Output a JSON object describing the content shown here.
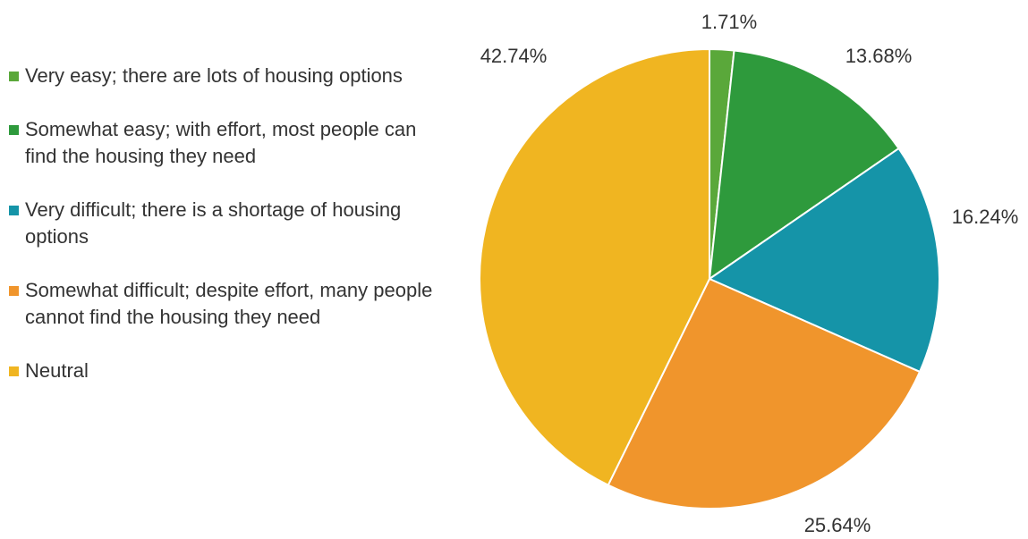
{
  "chart_data": {
    "type": "pie",
    "title": "",
    "categories": [
      "Very easy; there are lots of housing options",
      "Somewhat easy; with effort, most people can find the housing they need",
      "Very difficult; there is a shortage of housing options",
      "Somewhat difficult; despite effort, many people cannot find the housing they need",
      "Neutral"
    ],
    "values": [
      1.71,
      13.68,
      16.24,
      25.64,
      42.74
    ],
    "value_labels": [
      "1.71%",
      "13.68%",
      "16.24%",
      "25.64%",
      "42.74%"
    ],
    "colors": [
      "#5aa83a",
      "#2e9a3c",
      "#1594a8",
      "#f0952c",
      "#f0b521"
    ],
    "legend": "left",
    "start": "top",
    "direction": "clockwise"
  }
}
